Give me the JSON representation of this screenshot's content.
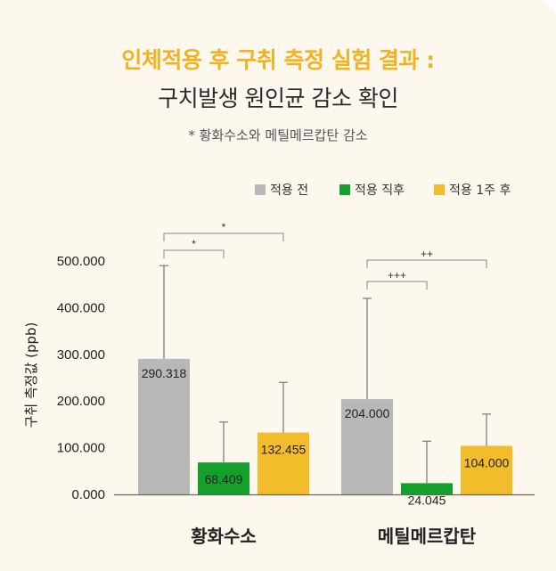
{
  "header": {
    "title": "인체적용 후 구취 측정 실험 결과 :",
    "subtitle": "구치발생 원인균 감소 확인",
    "note": "* 황화수소와 메틸메르캅탄 감소"
  },
  "colors": {
    "before": "#b8b8b8",
    "after": "#15a02e",
    "week": "#f2bc2a",
    "title": "#f0b323"
  },
  "chart_data": {
    "type": "bar",
    "title": "인체적용 후 구취 측정 실험 결과 : 구치발생 원인균 감소 확인",
    "xlabel": "",
    "ylabel": "구취 측정값 (ppb)",
    "ylim": [
      0,
      500
    ],
    "yticks": [
      "0.000",
      "100.000",
      "200.000",
      "300.000",
      "400.000",
      "500.000"
    ],
    "categories": [
      "황화수소",
      "메틸메르캅탄"
    ],
    "series": [
      {
        "name": "적용 전",
        "values": [
          290.318,
          204.0
        ],
        "labels": [
          "290.318",
          "204.000"
        ],
        "error_top": [
          490,
          420
        ]
      },
      {
        "name": "적용 직후",
        "values": [
          68.409,
          24.045
        ],
        "labels": [
          "68.409",
          "24.045"
        ],
        "error_top": [
          155,
          114
        ]
      },
      {
        "name": "적용 1주 후",
        "values": [
          132.455,
          104.0
        ],
        "labels": [
          "132.455",
          "104.000"
        ],
        "error_top": [
          240,
          172
        ]
      }
    ],
    "significance": [
      {
        "category": 0,
        "from_series": 0,
        "to_series": 1,
        "label": "*"
      },
      {
        "category": 0,
        "from_series": 0,
        "to_series": 2,
        "label": "*"
      },
      {
        "category": 1,
        "from_series": 0,
        "to_series": 1,
        "label": "+++"
      },
      {
        "category": 1,
        "from_series": 0,
        "to_series": 2,
        "label": "++"
      }
    ],
    "legend": "top-right"
  }
}
